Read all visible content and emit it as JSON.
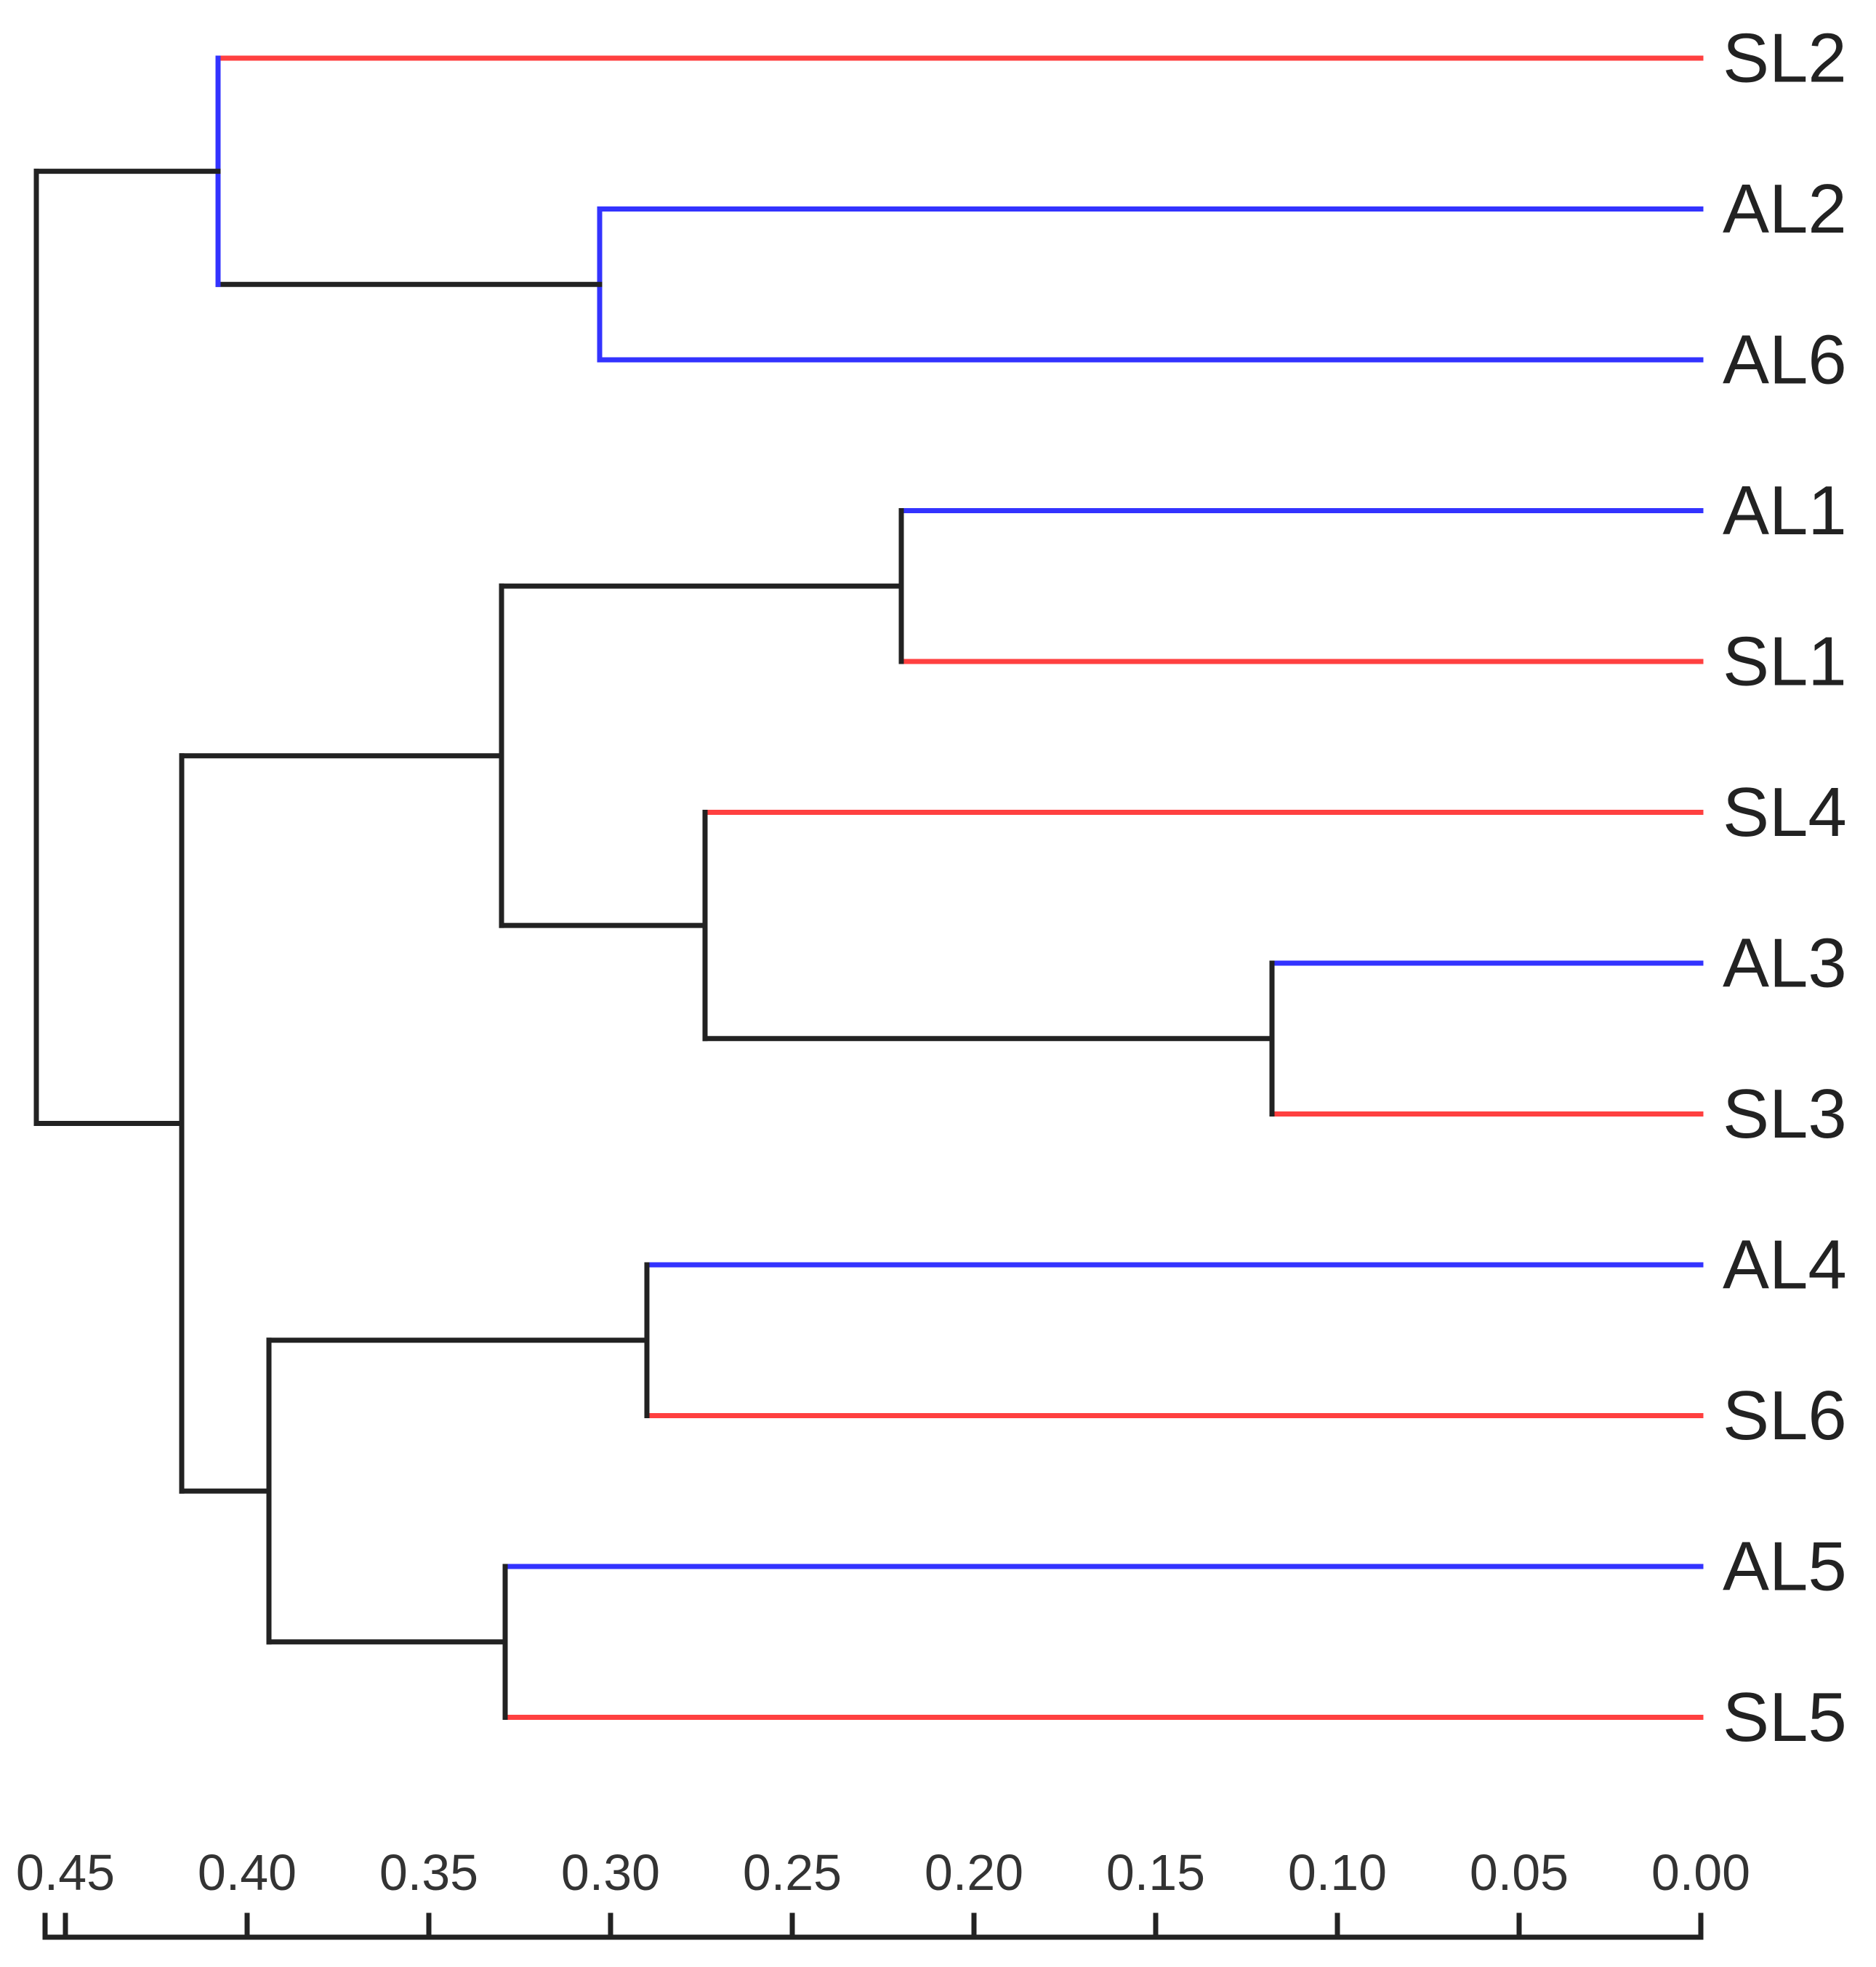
{
  "chart_data": {
    "type": "dendrogram",
    "orientation": "leaves-right",
    "xlim": [
      0.45,
      0.0
    ],
    "x_ticks": [
      0.45,
      0.4,
      0.35,
      0.3,
      0.25,
      0.2,
      0.15,
      0.1,
      0.05,
      0.0
    ],
    "x_tick_labels": [
      "0.45",
      "0.40",
      "0.35",
      "0.30",
      "0.25",
      "0.20",
      "0.15",
      "0.10",
      "0.05",
      "0.00"
    ],
    "leaves": [
      {
        "label": "SL2",
        "color": "#ff4040"
      },
      {
        "label": "AL2",
        "color": "#3333ff"
      },
      {
        "label": "AL6",
        "color": "#3333ff"
      },
      {
        "label": "AL1",
        "color": "#3333ff"
      },
      {
        "label": "SL1",
        "color": "#ff4040"
      },
      {
        "label": "SL4",
        "color": "#ff4040"
      },
      {
        "label": "AL3",
        "color": "#3333ff"
      },
      {
        "label": "SL3",
        "color": "#ff4040"
      },
      {
        "label": "AL4",
        "color": "#3333ff"
      },
      {
        "label": "SL6",
        "color": "#ff4040"
      },
      {
        "label": "AL5",
        "color": "#3333ff"
      },
      {
        "label": "SL5",
        "color": "#ff4040"
      }
    ],
    "merges": [
      {
        "id": "c1",
        "height": 0.303,
        "left": "AL2",
        "right": "AL6",
        "color": "#3333ff"
      },
      {
        "id": "c2",
        "height": 0.408,
        "left": "SL2",
        "right": "c1",
        "color": "#3333ff"
      },
      {
        "id": "c3",
        "height": 0.22,
        "left": "AL1",
        "right": "SL1",
        "color": "#222222"
      },
      {
        "id": "c4",
        "height": 0.118,
        "left": "AL3",
        "right": "SL3",
        "color": "#222222"
      },
      {
        "id": "c5",
        "height": 0.274,
        "left": "SL4",
        "right": "c4",
        "color": "#222222"
      },
      {
        "id": "c6",
        "height": 0.33,
        "left": "c3",
        "right": "c5",
        "color": "#222222"
      },
      {
        "id": "c7",
        "height": 0.29,
        "left": "AL4",
        "right": "SL6",
        "color": "#222222"
      },
      {
        "id": "c8",
        "height": 0.329,
        "left": "AL5",
        "right": "SL5",
        "color": "#222222"
      },
      {
        "id": "c9",
        "height": 0.394,
        "left": "c7",
        "right": "c8",
        "color": "#222222"
      },
      {
        "id": "c10",
        "height": 0.418,
        "left": "c6",
        "right": "c9",
        "color": "#222222"
      },
      {
        "id": "c11",
        "height": 0.458,
        "left": "c2",
        "right": "c10",
        "color": "#222222"
      }
    ]
  }
}
